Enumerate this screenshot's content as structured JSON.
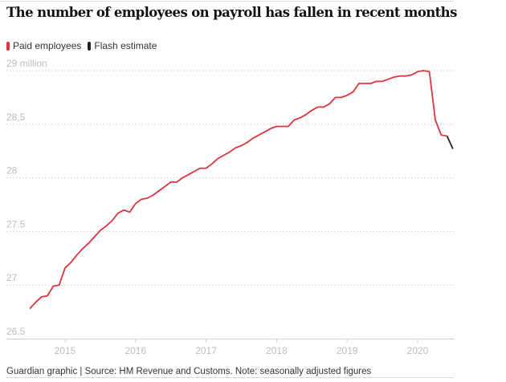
{
  "chart_data": {
    "type": "line",
    "title": "The number of employees on payroll has fallen in recent months",
    "ylabel": "",
    "xlabel": "",
    "y_unit_label": "29 million",
    "ylim": [
      26.5,
      29
    ],
    "yticks": [
      26.5,
      27,
      27.5,
      28,
      28.5,
      29
    ],
    "ytick_labels": [
      "26.5",
      "27",
      "27.5",
      "28",
      "28.5",
      "29 million"
    ],
    "xticks": [
      2015,
      2016,
      2017,
      2018,
      2019,
      2020
    ],
    "xtick_labels": [
      "2015",
      "2016",
      "2017",
      "2018",
      "2019",
      "2020"
    ],
    "x_start": "2014-07",
    "x_frequency": "monthly",
    "grid": true,
    "legend_placement": "top-left",
    "legend": [
      {
        "name": "Paid employees",
        "color": "#d9363e"
      },
      {
        "name": "Flash estimate",
        "color": "#222222"
      }
    ],
    "series": [
      {
        "name": "Paid employees",
        "color": "#d9363e",
        "values": [
          26.78,
          26.84,
          26.89,
          26.9,
          26.99,
          27.0,
          27.16,
          27.21,
          27.28,
          27.34,
          27.39,
          27.45,
          27.51,
          27.55,
          27.6,
          27.67,
          27.7,
          27.68,
          27.76,
          27.8,
          27.81,
          27.84,
          27.88,
          27.92,
          27.96,
          27.96,
          28.0,
          28.03,
          28.06,
          28.09,
          28.09,
          28.13,
          28.18,
          28.21,
          28.24,
          28.28,
          28.3,
          28.33,
          28.37,
          28.4,
          28.43,
          28.46,
          28.48,
          28.48,
          28.48,
          28.54,
          28.56,
          28.59,
          28.63,
          28.66,
          28.66,
          28.69,
          28.75,
          28.75,
          28.77,
          28.8,
          28.88,
          28.88,
          28.88,
          28.9,
          28.9,
          28.92,
          28.94,
          28.95,
          28.95,
          28.96,
          28.99,
          29.0,
          28.99,
          28.54,
          28.4,
          28.39
        ]
      },
      {
        "name": "Flash estimate",
        "color": "#222222",
        "start_index": 71,
        "values": [
          28.39,
          28.27
        ]
      }
    ]
  },
  "footer": "Guardian graphic | Source: HM Revenue and Customs. Note: seasonally adjusted figures"
}
